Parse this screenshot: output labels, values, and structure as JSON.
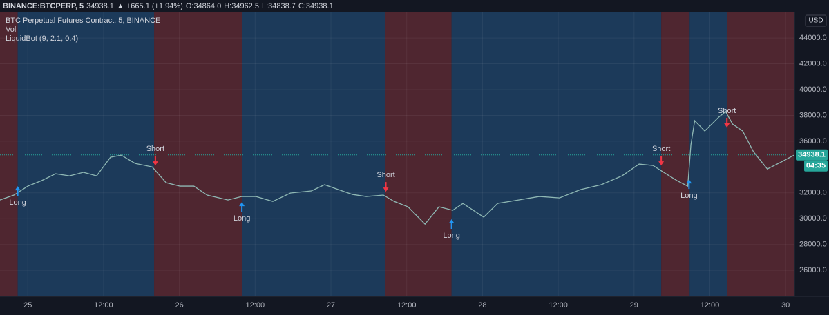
{
  "header": {
    "symbol": "BINANCE:BTCPERP, 5",
    "last": "34938.1",
    "change": "▲ +665.1 (+1.94%)",
    "ohlc": [
      {
        "label": "O:",
        "value": "34864.0"
      },
      {
        "label": "H:",
        "value": "34962.5"
      },
      {
        "label": "L:",
        "value": "34838.7"
      },
      {
        "label": "C:",
        "value": "34938.1"
      }
    ]
  },
  "chart_data": {
    "type": "line",
    "legend_lines": [
      "BTC Perpetual Futures Contract, 5, BINANCE",
      "Vol",
      "LiquidBot  (9, 2.1, 0.4)"
    ],
    "y_axis_unit": "USD",
    "xlim": [
      -4.4,
      121.4
    ],
    "ylim": [
      23980,
      45980
    ],
    "xticks": [
      {
        "value": 0,
        "label": "25"
      },
      {
        "value": 12,
        "label": "12:00"
      },
      {
        "value": 24,
        "label": "26"
      },
      {
        "value": 36,
        "label": "12:00"
      },
      {
        "value": 48,
        "label": "27"
      },
      {
        "value": 60,
        "label": "12:00"
      },
      {
        "value": 72,
        "label": "28"
      },
      {
        "value": 84,
        "label": "12:00"
      },
      {
        "value": 96,
        "label": "29"
      },
      {
        "value": 108,
        "label": "12:00"
      },
      {
        "value": 120,
        "label": "30"
      }
    ],
    "yticks": [
      {
        "value": 26000,
        "label": "26000.0"
      },
      {
        "value": 28000,
        "label": "28000.0"
      },
      {
        "value": 30000,
        "label": "30000.0"
      },
      {
        "value": 32000,
        "label": "32000.0"
      },
      {
        "value": 36000,
        "label": "36000.0"
      },
      {
        "value": 38000,
        "label": "38000.0"
      },
      {
        "value": 40000,
        "label": "40000.0"
      },
      {
        "value": 42000,
        "label": "42000.0"
      },
      {
        "value": 44000,
        "label": "44000.0"
      }
    ],
    "grid": true,
    "zones": [
      {
        "x": [
          -4.4,
          -1.6
        ],
        "color": "#4f2630"
      },
      {
        "x": [
          -1.6,
          20.0
        ],
        "color": "#1c3a5a"
      },
      {
        "x": [
          20.0,
          33.9
        ],
        "color": "#4f2630"
      },
      {
        "x": [
          33.9,
          56.6
        ],
        "color": "#1c3a5a"
      },
      {
        "x": [
          56.6,
          67.1
        ],
        "color": "#4f2630"
      },
      {
        "x": [
          67.1,
          100.3
        ],
        "color": "#1c3a5a"
      },
      {
        "x": [
          100.3,
          104.8
        ],
        "color": "#4f2630"
      },
      {
        "x": [
          104.8,
          110.7
        ],
        "color": "#1c3a5a"
      },
      {
        "x": [
          110.7,
          121.4
        ],
        "color": "#4f2630"
      }
    ],
    "x": [
      -4.4,
      -2.2,
      0,
      2.2,
      4.4,
      6.6,
      8.8,
      10.9,
      13.1,
      14.8,
      17.0,
      19.7,
      21.9,
      24.1,
      26.3,
      28.4,
      31.7,
      33.9,
      36.1,
      38.8,
      41.6,
      44.9,
      47.0,
      49.2,
      51.4,
      53.6,
      56.3,
      58.0,
      60.2,
      62.9,
      65.1,
      67.3,
      68.9,
      72.2,
      74.4,
      77.7,
      81.0,
      84.2,
      87.5,
      90.8,
      94.1,
      96.8,
      99.0,
      100.7,
      102.8,
      104.5,
      105.0,
      105.6,
      107.2,
      109.4,
      110.5,
      111.6,
      113.2,
      114.9,
      117.1,
      119.3,
      121.4
    ],
    "series": [
      {
        "color": "#8fb8b4",
        "values": [
          31450,
          31830,
          32520,
          32950,
          33480,
          33320,
          33590,
          33320,
          34760,
          34920,
          34280,
          34010,
          32790,
          32520,
          32520,
          31830,
          31450,
          31720,
          31720,
          31340,
          31990,
          32150,
          32630,
          32250,
          31880,
          31720,
          31830,
          31340,
          30920,
          29580,
          30920,
          30650,
          31180,
          30120,
          31180,
          31450,
          31720,
          31610,
          32250,
          32630,
          33320,
          34230,
          34120,
          33590,
          32950,
          32520,
          35720,
          37590,
          36790,
          37860,
          38290,
          37330,
          36790,
          35190,
          33850,
          34390,
          34938.1
        ]
      }
    ],
    "signals": [
      {
        "label": "Long",
        "x": -1.6,
        "price": 32520,
        "color": "#2196f3"
      },
      {
        "label": "Short",
        "x": 20.2,
        "price": 34120,
        "color": "#f23645"
      },
      {
        "label": "Long",
        "x": 33.9,
        "price": 31290,
        "color": "#2196f3"
      },
      {
        "label": "Short",
        "x": 56.7,
        "price": 32090,
        "color": "#f23645"
      },
      {
        "label": "Long",
        "x": 67.1,
        "price": 29960,
        "color": "#2196f3"
      },
      {
        "label": "Short",
        "x": 100.3,
        "price": 34120,
        "color": "#f23645"
      },
      {
        "label": "Long",
        "x": 104.7,
        "price": 33050,
        "color": "#2196f3"
      },
      {
        "label": "Short",
        "x": 110.7,
        "price": 37060,
        "color": "#f23645"
      }
    ],
    "last_price": {
      "value": 34938.1,
      "label": "34938.1"
    },
    "countdown": "04:35"
  }
}
